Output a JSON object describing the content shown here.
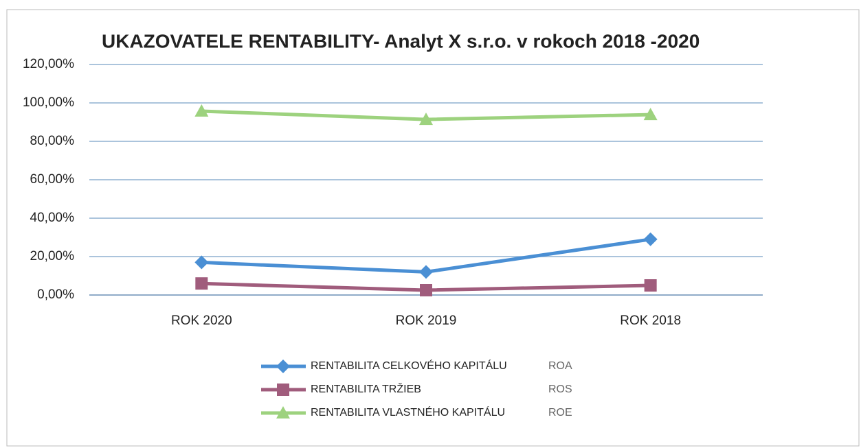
{
  "chart_data": {
    "type": "line",
    "title": "UKAZOVATELE RENTABILITY- Analyt X s.r.o.  v rokoch 2018 -2020",
    "categories": [
      "ROK 2020",
      "ROK 2019",
      "ROK 2018"
    ],
    "series": [
      {
        "name": "RENTABILITA CELKOVÉHO KAPITÁLU",
        "code": "ROA",
        "color": "#4a8fd4",
        "marker": "diamond",
        "values": [
          17,
          12,
          29
        ]
      },
      {
        "name": "RENTABILITA TRŽIEB",
        "code": "ROS",
        "color": "#a05c7c",
        "marker": "square",
        "values": [
          6,
          2.5,
          5
        ]
      },
      {
        "name": "RENTABILITA VLASTNÉHO KAPITÁLU",
        "code": "ROE",
        "color": "#9dd27e",
        "marker": "triangle",
        "values": [
          95.7,
          91.4,
          93.9
        ]
      }
    ],
    "ylim": [
      0,
      120
    ],
    "yticks": [
      {
        "value": 0,
        "label": "0,00%"
      },
      {
        "value": 20,
        "label": "20,00%"
      },
      {
        "value": 40,
        "label": "40,00%"
      },
      {
        "value": 60,
        "label": "60,00%"
      },
      {
        "value": 80,
        "label": "80,00%"
      },
      {
        "value": 100,
        "label": "100,00%"
      },
      {
        "value": 120,
        "label": "120,00%"
      }
    ],
    "grid": true
  }
}
